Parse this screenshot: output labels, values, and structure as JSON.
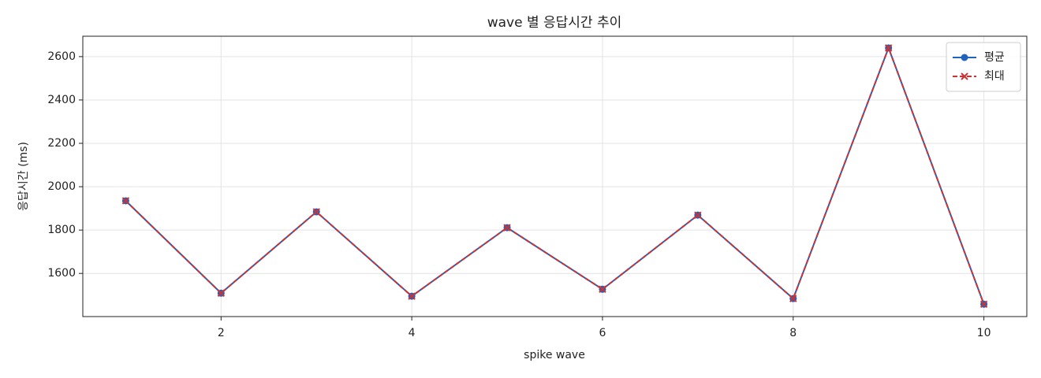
{
  "chart_data": {
    "type": "line",
    "title": "wave 별 응답시간 추이",
    "x_label": "spike wave",
    "y_label": "응답시간 (ms)",
    "x": [
      1,
      2,
      3,
      4,
      5,
      6,
      7,
      8,
      9,
      10
    ],
    "series": [
      {
        "name": "평균",
        "color": "#1f63c0",
        "marker": "circle",
        "dash": false,
        "values": [
          1935,
          1509,
          1884,
          1495,
          1811,
          1527,
          1869,
          1484,
          2640,
          1458
        ]
      },
      {
        "name": "최대",
        "color": "#cc3333",
        "marker": "x",
        "dash": true,
        "values": [
          1935,
          1509,
          1884,
          1495,
          1811,
          1527,
          1869,
          1484,
          2640,
          1458
        ]
      }
    ],
    "xlim": [
      0.55,
      10.45
    ],
    "ylim": [
      1401,
      2694
    ],
    "xticks": [
      2,
      4,
      6,
      8,
      10
    ],
    "yticks": [
      1600,
      1800,
      2000,
      2200,
      2400,
      2600
    ],
    "grid": true,
    "legend": "upper right"
  }
}
